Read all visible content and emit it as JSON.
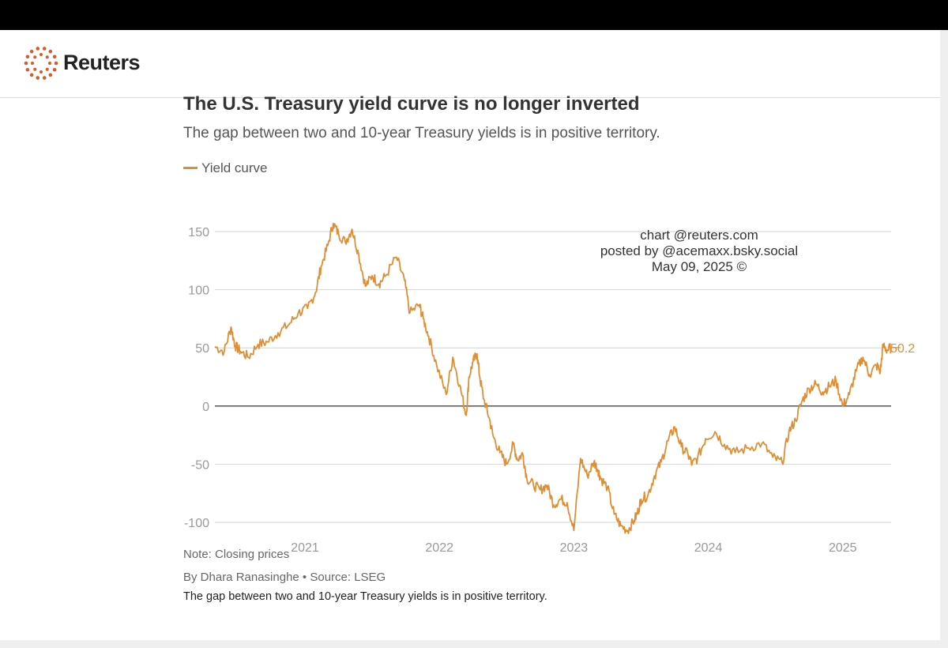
{
  "brand": "Reuters",
  "colors": {
    "line": "#e08e33",
    "grid": "#d4d4d4",
    "zero": "#444444",
    "axis_text": "#999999"
  },
  "chart_data": {
    "type": "line",
    "title": "The U.S. Treasury yield curve is no longer inverted",
    "subtitle": "The gap between two and 10-year Treasury yields is in positive territory.",
    "xlabel": "",
    "ylabel": "",
    "ylim": [
      -100,
      150
    ],
    "xlim": [
      2020.33,
      2025.36
    ],
    "yticks": [
      150,
      100,
      50,
      0,
      -50,
      -100
    ],
    "xticks": [
      2021,
      2022,
      2023,
      2024,
      2025
    ],
    "grid": true,
    "legend": "top-left",
    "series": [
      {
        "name": "Yield curve",
        "x": [
          2020.33,
          2020.4,
          2020.45,
          2020.48,
          2020.52,
          2020.58,
          2020.65,
          2020.72,
          2020.8,
          2020.88,
          2020.95,
          2021.02,
          2021.08,
          2021.12,
          2021.17,
          2021.21,
          2021.25,
          2021.3,
          2021.35,
          2021.4,
          2021.45,
          2021.5,
          2021.55,
          2021.6,
          2021.68,
          2021.74,
          2021.78,
          2021.85,
          2021.88,
          2021.92,
          2021.98,
          2022.05,
          2022.1,
          2022.15,
          2022.2,
          2022.22,
          2022.25,
          2022.28,
          2022.3,
          2022.33,
          2022.37,
          2022.4,
          2022.45,
          2022.5,
          2022.55,
          2022.58,
          2022.62,
          2022.65,
          2022.7,
          2022.75,
          2022.8,
          2022.85,
          2022.9,
          2022.95,
          2023.0,
          2023.05,
          2023.1,
          2023.15,
          2023.18,
          2023.2,
          2023.25,
          2023.3,
          2023.35,
          2023.4,
          2023.45,
          2023.48,
          2023.5,
          2023.55,
          2023.6,
          2023.65,
          2023.7,
          2023.75,
          2023.8,
          2023.85,
          2023.88,
          2023.92,
          2023.98,
          2024.05,
          2024.12,
          2024.2,
          2024.3,
          2024.4,
          2024.48,
          2024.55,
          2024.6,
          2024.65,
          2024.7,
          2024.75,
          2024.8,
          2024.85,
          2024.9,
          2024.95,
          2025.0,
          2025.05,
          2025.1,
          2025.15,
          2025.2,
          2025.25,
          2025.28,
          2025.3,
          2025.33,
          2025.36
        ],
        "values": [
          51,
          47,
          68,
          52,
          47,
          42,
          53,
          55,
          63,
          70,
          80,
          84,
          98,
          120,
          138,
          157,
          148,
          141,
          152,
          130,
          103,
          112,
          105,
          112,
          128,
          108,
          80,
          87,
          75,
          60,
          35,
          10,
          42,
          18,
          -8,
          25,
          38,
          45,
          25,
          6,
          -10,
          -26,
          -40,
          -50,
          -33,
          -46,
          -41,
          -62,
          -68,
          -72,
          -68,
          -85,
          -80,
          -83,
          -107,
          -45,
          -60,
          -48,
          -55,
          -62,
          -70,
          -93,
          -103,
          -107,
          -98,
          -90,
          -80,
          -77,
          -60,
          -48,
          -30,
          -18,
          -35,
          -42,
          -50,
          -45,
          -28,
          -22,
          -33,
          -40,
          -36,
          -32,
          -44,
          -49,
          -22,
          -12,
          5,
          15,
          19,
          12,
          17,
          22,
          0,
          10,
          30,
          42,
          27,
          35,
          30,
          52,
          48,
          50.2
        ]
      }
    ],
    "annotations": [
      "50.2"
    ]
  },
  "watermark": {
    "line1": "chart @reuters.com",
    "line2": "posted by @acemaxx.bsky.social",
    "line3": "May 09, 2025 ©"
  },
  "legend_label": "Yield curve",
  "footer": {
    "note": "Note: Closing prices",
    "byline": "By Dhara Ranasinghe  • Source: LSEG",
    "caption": "The gap between two and 10-year Treasury yields is in positive territory."
  }
}
